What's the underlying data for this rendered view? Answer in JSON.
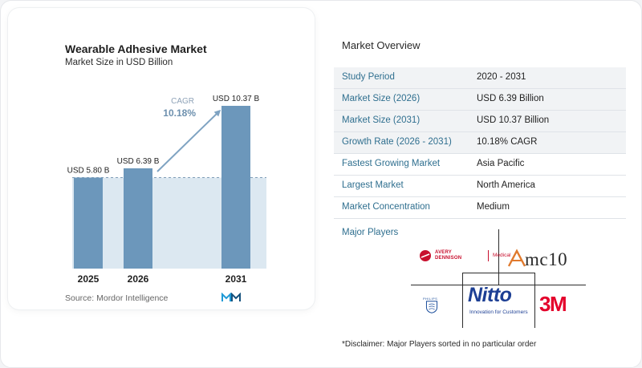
{
  "chart_data": {
    "type": "bar",
    "title": "Wearable Adhesive Market",
    "subtitle": "Market Size in USD Billion",
    "categories": [
      "2025",
      "2026",
      "2031"
    ],
    "values": [
      5.8,
      6.39,
      10.37
    ],
    "data_labels": [
      "USD 5.80 B",
      "USD 6.39 B",
      "USD 10.37 B"
    ],
    "cagr_label": "CAGR",
    "cagr_value": "10.18%",
    "bar_color": "#6c97bb",
    "reference_fill": "#dce8f1",
    "arrow_color": "#7fa3c2",
    "ylim": [
      0,
      10.37
    ],
    "grid": false
  },
  "source": "Source:  Mordor Intelligence",
  "overview": {
    "title": "Market Overview",
    "rows": [
      {
        "label": "Study Period",
        "value": "2020 - 2031"
      },
      {
        "label": "Market Size (2026)",
        "value": "USD 6.39 Billion"
      },
      {
        "label": "Market Size (2031)",
        "value": "USD 10.37 Billion"
      },
      {
        "label": "Growth Rate (2026 - 2031)",
        "value": "10.18% CAGR"
      },
      {
        "label": "Fastest Growing Market",
        "value": "Asia Pacific"
      },
      {
        "label": "Largest Market",
        "value": "North America"
      },
      {
        "label": "Market Concentration",
        "value": "Medium"
      }
    ]
  },
  "players": {
    "title": "Major Players",
    "avery_name_line1": "AVERY",
    "avery_name_line2": "DENNISON",
    "avery_tag": "Medical",
    "mc10": "mc10",
    "philips": "PHILIPS",
    "nitto": "Nitto",
    "nitto_tag": "Innovation for Customers",
    "threem": "3M"
  },
  "disclaimer": "*Disclaimer: Major Players sorted in no particular order"
}
